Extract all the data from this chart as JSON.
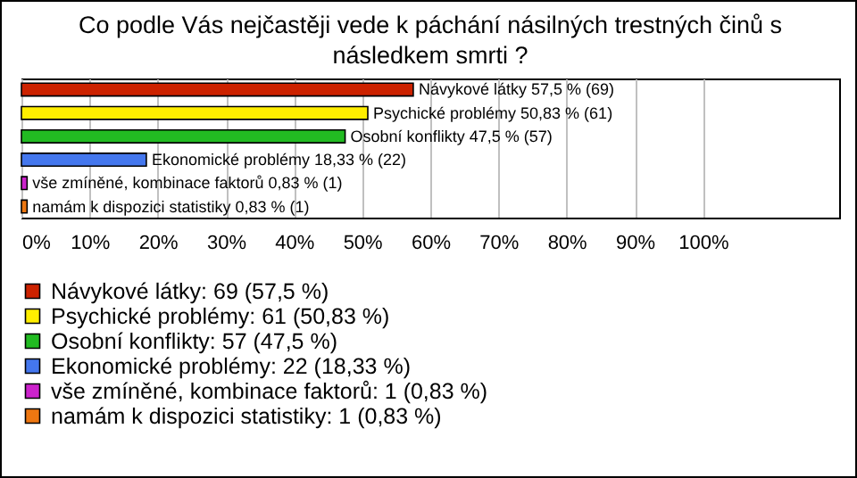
{
  "chart_data": {
    "type": "bar",
    "orientation": "horizontal",
    "title": "Co podle Vás nejčastěji vede k páchání násilných trestných činů s následkem smrti ?",
    "categories": [
      null,
      null,
      null,
      null,
      null,
      null
    ],
    "series": [
      {
        "name": "Návykové látky: 69 (57,5 %)",
        "color": "#cc2200",
        "values": [
          57.5,
          null,
          null,
          null,
          null,
          null
        ],
        "value_labels": [
          "Návykové látky 57,5 % (69)",
          null,
          null,
          null,
          null,
          null
        ]
      },
      {
        "name": "Psychické problémy: 61 (50,83 %)",
        "color": "#ffee00",
        "values": [
          null,
          50.83,
          null,
          null,
          null,
          null
        ],
        "value_labels": [
          null,
          "Psychické problémy 50,83 % (61)",
          null,
          null,
          null,
          null
        ]
      },
      {
        "name": "Osobní konflikty: 57 (47,5 %)",
        "color": "#22bb22",
        "values": [
          null,
          null,
          47.5,
          null,
          null,
          null
        ],
        "value_labels": [
          null,
          null,
          "Osobní konflikty 47,5 % (57)",
          null,
          null,
          null
        ]
      },
      {
        "name": "Ekonomické problémy: 22 (18,33 %)",
        "color": "#4477ee",
        "values": [
          null,
          null,
          null,
          18.33,
          null,
          null
        ],
        "value_labels": [
          null,
          null,
          null,
          "Ekonomické problémy 18,33 % (22)",
          null,
          null
        ]
      },
      {
        "name": "vše zmíněné, kombinace faktorů: 1 (0,83 %)",
        "color": "#cc22cc",
        "values": [
          null,
          null,
          null,
          null,
          0.83,
          null
        ],
        "value_labels": [
          null,
          null,
          null,
          null,
          "vše zmíněné, kombinace faktorů 0,83 % (1)",
          null
        ]
      },
      {
        "name": "namám k dispozici statistiky: 1 (0,83 %)",
        "color": "#ee7711",
        "values": [
          null,
          null,
          null,
          null,
          null,
          0.83
        ],
        "value_labels": [
          null,
          null,
          null,
          null,
          null,
          "namám k dispozici statistiky 0,83 % (1)"
        ]
      }
    ],
    "xlim": [
      0,
      120
    ],
    "xticks": [
      {
        "value": 0,
        "label": "0%"
      },
      {
        "value": 10,
        "label": "10%"
      },
      {
        "value": 20,
        "label": "20%"
      },
      {
        "value": 30,
        "label": "30%"
      },
      {
        "value": 40,
        "label": "40%"
      },
      {
        "value": 50,
        "label": "50%"
      },
      {
        "value": 60,
        "label": "60%"
      },
      {
        "value": 70,
        "label": "70%"
      },
      {
        "value": 80,
        "label": "80%"
      },
      {
        "value": 90,
        "label": "90%"
      },
      {
        "value": 100,
        "label": "100%"
      }
    ],
    "grid": "x",
    "legend": "bottom",
    "tick_labels": "x"
  }
}
